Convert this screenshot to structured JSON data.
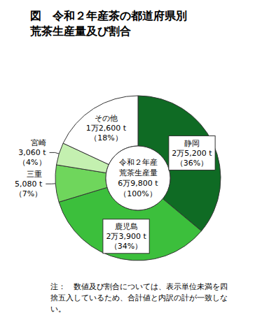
{
  "chart_data": {
    "type": "pie",
    "title": "図　令和２年産茶の都道府県別\n荒茶生産量及び割合",
    "categories": [
      "静岡",
      "鹿児島",
      "三重",
      "宮崎",
      "その他"
    ],
    "values": [
      25200,
      23900,
      5080,
      3060,
      12600
    ],
    "value_labels": [
      "2万5,200 t\n（36%）",
      "2万3,900 t\n（34%）",
      "5,080 t\n（7%）",
      "3,060 t\n（4%）",
      "1万2,600 t\n（18%）"
    ],
    "colors": [
      "#0f6b24",
      "#3cbf3c",
      "#6fd65c",
      "#c4f0b0",
      "#ffffff"
    ],
    "total": 69800,
    "total_label": "令和２年産\n荒茶生産量\n6万9,800 t\n（100%）",
    "note": "注：　数値及び割合については、表示単位未満を四捨五入しているため、合計値と内訳の計が一致しない。",
    "data_labels": true
  }
}
